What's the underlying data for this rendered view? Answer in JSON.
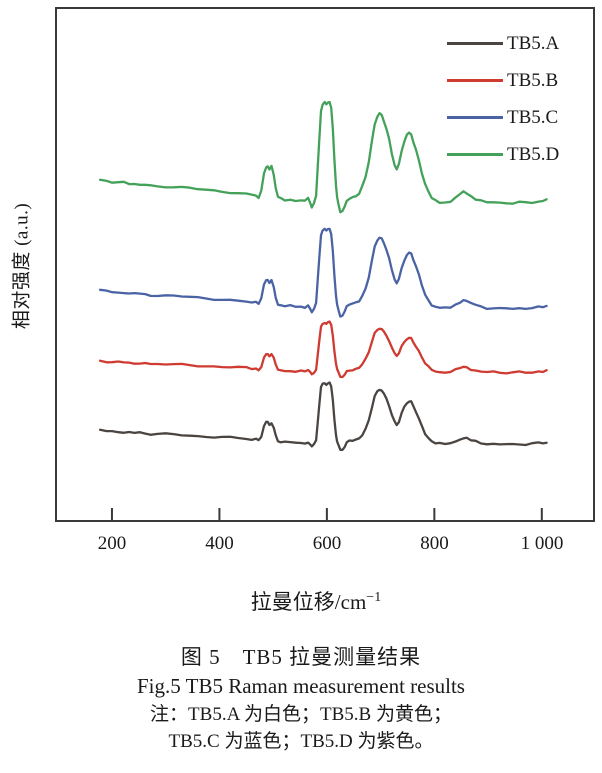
{
  "figure": {
    "caption_cn": "图 5　TB5 拉曼测量结果",
    "caption_en": "Fig.5 TB5 Raman measurement results",
    "note_line1": "注：TB5.A 为白色；TB5.B 为黄色；",
    "note_line2": "TB5.C 为蓝色；TB5.D 为紫色。"
  },
  "chart_data": {
    "type": "line",
    "title": "",
    "ylabel": "相对强度 (a.u.)",
    "xlabel_base": "拉曼位移/cm",
    "xlabel_sup": "−1",
    "x_ticks": [
      200,
      400,
      600,
      800,
      1000
    ],
    "x_tick_labels": [
      "200",
      "400",
      "600",
      "800",
      "1 000"
    ],
    "x_range": [
      94,
      1099
    ],
    "y_units_range": [
      0,
      100
    ],
    "grid": false,
    "legend_position": "inside-top-right",
    "axis_color": "#3a3a3a",
    "legend": [
      {
        "label": "TB5.A",
        "color": "#4b4542"
      },
      {
        "label": "TB5.B",
        "color": "#cf3a31"
      },
      {
        "label": "TB5.C",
        "color": "#4a63a5"
      },
      {
        "label": "TB5.D",
        "color": "#44a159"
      }
    ],
    "series": [
      {
        "name": "TB5.A",
        "color": "#4b4542",
        "baseline_units": 15.9,
        "amplitude_units": 11.1,
        "jitter_seed": 1
      },
      {
        "name": "TB5.B",
        "color": "#cf3a31",
        "baseline_units": 29.7,
        "amplitude_units": 9.1,
        "jitter_seed": 2
      },
      {
        "name": "TB5.C",
        "color": "#4a63a5",
        "baseline_units": 42.5,
        "amplitude_units": 14.4,
        "jitter_seed": 3
      },
      {
        "name": "TB5.D",
        "color": "#44a159",
        "baseline_units": 63.3,
        "amplitude_units": 18.3,
        "jitter_seed": 4
      }
    ],
    "profile_points": [
      [
        178,
        0.17
      ],
      [
        190,
        0.16
      ],
      [
        200,
        0.15
      ],
      [
        212,
        0.14
      ],
      [
        222,
        0.145
      ],
      [
        232,
        0.13
      ],
      [
        242,
        0.125
      ],
      [
        252,
        0.13
      ],
      [
        262,
        0.115
      ],
      [
        272,
        0.11
      ],
      [
        285,
        0.105
      ],
      [
        300,
        0.1
      ],
      [
        315,
        0.095
      ],
      [
        330,
        0.088
      ],
      [
        345,
        0.08
      ],
      [
        360,
        0.072
      ],
      [
        375,
        0.066
      ],
      [
        390,
        0.058
      ],
      [
        405,
        0.05
      ],
      [
        420,
        0.042
      ],
      [
        435,
        0.032
      ],
      [
        450,
        0.02
      ],
      [
        460,
        0.012
      ],
      [
        468,
        0.008
      ],
      [
        473,
        -0.01
      ],
      [
        478,
        0.06
      ],
      [
        483,
        0.24
      ],
      [
        487,
        0.31
      ],
      [
        490,
        0.32
      ],
      [
        493,
        0.28
      ],
      [
        497,
        0.31
      ],
      [
        501,
        0.22
      ],
      [
        505,
        0.08
      ],
      [
        509,
        -0.01
      ],
      [
        514,
        -0.03
      ],
      [
        522,
        -0.04
      ],
      [
        532,
        -0.04
      ],
      [
        542,
        -0.045
      ],
      [
        552,
        -0.05
      ],
      [
        559,
        -0.05
      ],
      [
        565,
        -0.03
      ],
      [
        569,
        -0.08
      ],
      [
        572,
        -0.12
      ],
      [
        576,
        -0.07
      ],
      [
        580,
        0.0
      ],
      [
        583,
        0.3
      ],
      [
        586,
        0.62
      ],
      [
        589,
        0.91
      ],
      [
        592,
        0.98
      ],
      [
        596,
        1.0
      ],
      [
        599,
        0.97
      ],
      [
        602,
        0.99
      ],
      [
        605,
        1.0
      ],
      [
        608,
        0.94
      ],
      [
        611,
        0.72
      ],
      [
        614,
        0.38
      ],
      [
        617,
        0.1
      ],
      [
        619,
        -0.02
      ],
      [
        622,
        -0.1
      ],
      [
        625,
        -0.17
      ],
      [
        629,
        -0.16
      ],
      [
        633,
        -0.12
      ],
      [
        637,
        -0.05
      ],
      [
        642,
        -0.02
      ],
      [
        648,
        -0.01
      ],
      [
        654,
        0.0
      ],
      [
        660,
        0.03
      ],
      [
        666,
        0.1
      ],
      [
        672,
        0.2
      ],
      [
        678,
        0.36
      ],
      [
        684,
        0.58
      ],
      [
        689,
        0.76
      ],
      [
        694,
        0.85
      ],
      [
        698,
        0.88
      ],
      [
        702,
        0.86
      ],
      [
        706,
        0.8
      ],
      [
        711,
        0.72
      ],
      [
        716,
        0.6
      ],
      [
        721,
        0.44
      ],
      [
        726,
        0.33
      ],
      [
        730,
        0.28
      ],
      [
        734,
        0.33
      ],
      [
        739,
        0.47
      ],
      [
        744,
        0.58
      ],
      [
        749,
        0.65
      ],
      [
        753,
        0.67
      ],
      [
        757,
        0.66
      ],
      [
        761,
        0.58
      ],
      [
        766,
        0.49
      ],
      [
        771,
        0.38
      ],
      [
        777,
        0.24
      ],
      [
        783,
        0.12
      ],
      [
        789,
        0.04
      ],
      [
        795,
        -0.02
      ],
      [
        802,
        -0.05
      ],
      [
        810,
        -0.065
      ],
      [
        820,
        -0.07
      ],
      [
        830,
        -0.055
      ],
      [
        840,
        -0.02
      ],
      [
        848,
        0.02
      ],
      [
        854,
        0.04
      ],
      [
        860,
        0.03
      ],
      [
        868,
        0.0
      ],
      [
        877,
        -0.03
      ],
      [
        887,
        -0.05
      ],
      [
        898,
        -0.065
      ],
      [
        910,
        -0.07
      ],
      [
        922,
        -0.075
      ],
      [
        934,
        -0.07
      ],
      [
        946,
        -0.075
      ],
      [
        958,
        -0.07
      ],
      [
        970,
        -0.072
      ],
      [
        982,
        -0.065
      ],
      [
        994,
        -0.055
      ],
      [
        1002,
        -0.05
      ],
      [
        1009,
        -0.042
      ]
    ]
  }
}
